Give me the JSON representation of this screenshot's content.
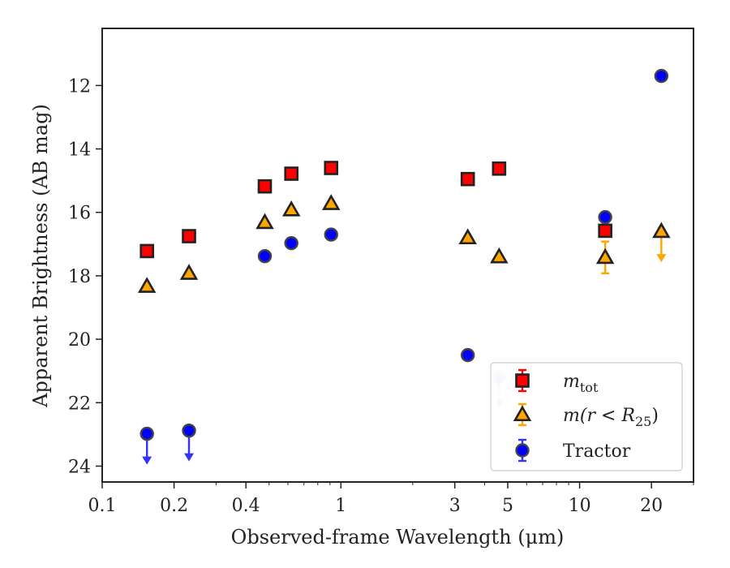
{
  "chart_data": {
    "type": "scatter",
    "title": "",
    "xlabel": "Observed-frame Wavelength (μm)",
    "ylabel": "Apparent Brightness (AB mag)",
    "xscale": "log",
    "xlim": [
      0.1,
      30
    ],
    "ylim": [
      24.5,
      10.2
    ],
    "y_inverted": true,
    "grid": false,
    "legend_position": "lower-right",
    "x_ticks": [
      {
        "value": 0.1,
        "label": "0.1"
      },
      {
        "value": 0.2,
        "label": "0.2"
      },
      {
        "value": 0.4,
        "label": "0.4"
      },
      {
        "value": 1,
        "label": "1"
      },
      {
        "value": 3,
        "label": "3"
      },
      {
        "value": 5,
        "label": "5"
      },
      {
        "value": 10,
        "label": "10"
      },
      {
        "value": 20,
        "label": "20"
      }
    ],
    "y_ticks": [
      {
        "value": 12,
        "label": "12"
      },
      {
        "value": 14,
        "label": "14"
      },
      {
        "value": 16,
        "label": "16"
      },
      {
        "value": 18,
        "label": "18"
      },
      {
        "value": 20,
        "label": "20"
      },
      {
        "value": 22,
        "label": "22"
      },
      {
        "value": 24,
        "label": "24"
      }
    ],
    "series": [
      {
        "key": "mtot",
        "marker": "square",
        "color": "#ff0000",
        "edge": "#222222",
        "errcolor": "#ff0000",
        "points": [
          {
            "x": 0.154,
            "y": 17.22
          },
          {
            "x": 0.231,
            "y": 16.75
          },
          {
            "x": 0.48,
            "y": 15.18
          },
          {
            "x": 0.62,
            "y": 14.78
          },
          {
            "x": 0.91,
            "y": 14.6
          },
          {
            "x": 3.4,
            "y": 14.95
          },
          {
            "x": 4.6,
            "y": 14.62
          },
          {
            "x": 12.8,
            "y": 16.58
          }
        ]
      },
      {
        "key": "mr25",
        "marker": "triangle",
        "color": "#ffa500",
        "edge": "#222222",
        "errcolor": "#ffa500",
        "points": [
          {
            "x": 0.154,
            "y": 18.33
          },
          {
            "x": 0.231,
            "y": 17.92
          },
          {
            "x": 0.48,
            "y": 16.32
          },
          {
            "x": 0.62,
            "y": 15.92
          },
          {
            "x": 0.91,
            "y": 15.72
          },
          {
            "x": 3.4,
            "y": 16.8
          },
          {
            "x": 4.6,
            "y": 17.4
          },
          {
            "x": 12.8,
            "y": 17.42,
            "yerr": 0.5
          },
          {
            "x": 22.0,
            "y": 16.6,
            "upper_limit": true
          }
        ]
      },
      {
        "key": "tractor",
        "marker": "circle",
        "color": "#0000ff",
        "edge": "#444444",
        "errcolor": "#3333ff",
        "points": [
          {
            "x": 0.154,
            "y": 22.98,
            "upper_limit": true
          },
          {
            "x": 0.231,
            "y": 22.88,
            "upper_limit": true
          },
          {
            "x": 0.48,
            "y": 17.38
          },
          {
            "x": 0.62,
            "y": 16.97
          },
          {
            "x": 0.91,
            "y": 16.7
          },
          {
            "x": 3.4,
            "y": 20.5
          },
          {
            "x": 4.6,
            "y": 21.2,
            "upper_limit": true,
            "faded": true
          },
          {
            "x": 12.8,
            "y": 16.15
          },
          {
            "x": 22.0,
            "y": 11.7
          }
        ]
      }
    ],
    "legend": [
      {
        "key": "mtot",
        "label": "m_tot"
      },
      {
        "key": "mr25",
        "label": "m(r < R25)"
      },
      {
        "key": "tractor",
        "label": "Tractor"
      }
    ]
  }
}
